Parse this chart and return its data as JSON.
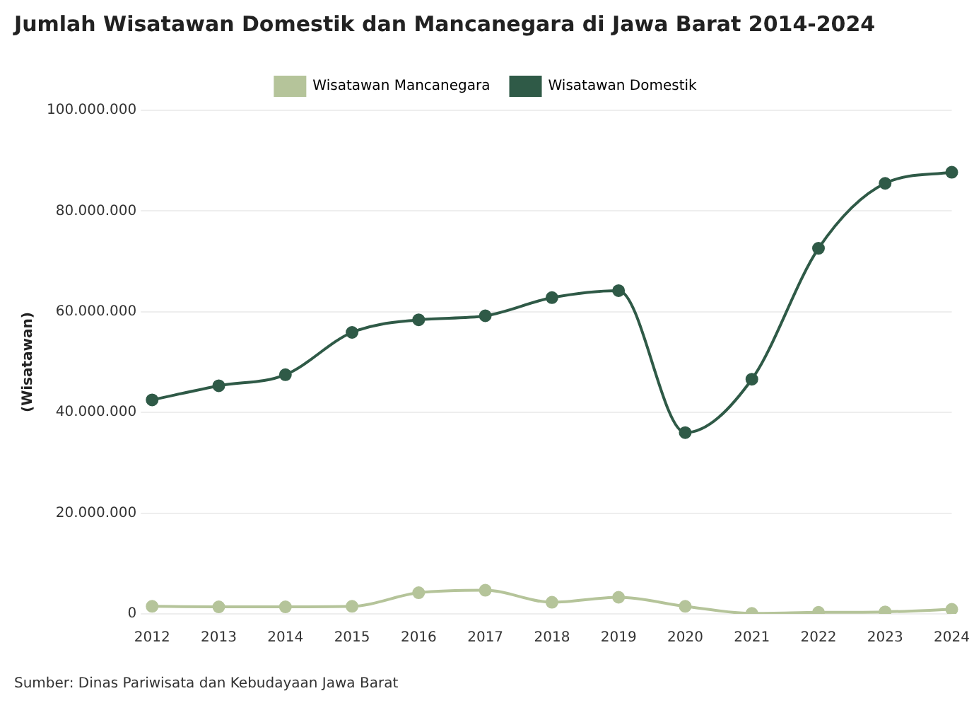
{
  "chart_data": {
    "type": "line",
    "title": "Jumlah Wisatawan Domestik dan Mancanegara di Jawa Barat 2014-2024",
    "ylabel": "(Wisatawan)",
    "categories": [
      "2012",
      "2013",
      "2014",
      "2015",
      "2016",
      "2017",
      "2018",
      "2019",
      "2020",
      "2021",
      "2022",
      "2023",
      "2024"
    ],
    "series": [
      {
        "name": "Wisatawan Mancanegara",
        "color": "#b5c49a",
        "values": [
          1500000,
          1400000,
          1400000,
          1500000,
          4200000,
          4700000,
          2300000,
          3300000,
          1500000,
          100000,
          300000,
          400000,
          900000
        ]
      },
      {
        "name": "Wisatawan Domestik",
        "color": "#2f5a47",
        "values": [
          42500000,
          45300000,
          47500000,
          55900000,
          58400000,
          59200000,
          62800000,
          64200000,
          36000000,
          46600000,
          72600000,
          85500000,
          87700000
        ]
      }
    ],
    "ylim": [
      0,
      100000000
    ],
    "yticks": [
      {
        "value": 0,
        "label": "0"
      },
      {
        "value": 20000000,
        "label": "20.000.000"
      },
      {
        "value": 40000000,
        "label": "40.000.000"
      },
      {
        "value": 60000000,
        "label": "60.000.000"
      },
      {
        "value": 80000000,
        "label": "80.000.000"
      },
      {
        "value": 100000000,
        "label": "100.000.000"
      }
    ],
    "grid": "y",
    "legend": "top",
    "marker": "circle",
    "annotations": [
      "Sumber: Dinas Pariwisata dan Kebudayaan Jawa Barat"
    ]
  }
}
